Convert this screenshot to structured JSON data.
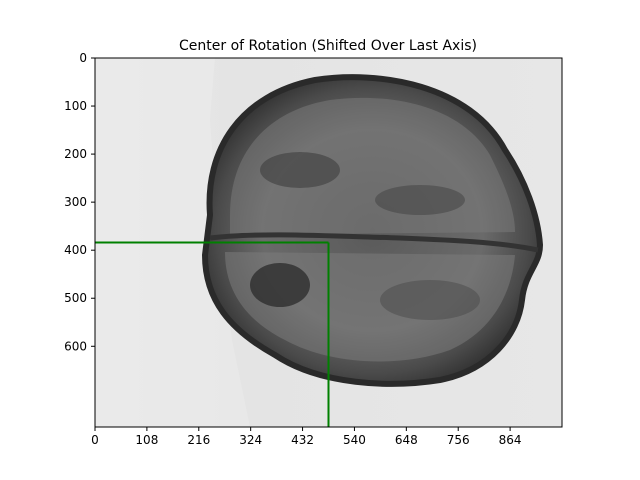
{
  "chart_data": {
    "type": "image",
    "title": "Center of Rotation (Shifted Over Last Axis)",
    "xlabel": "",
    "ylabel": "",
    "xlim": [
      0,
      972
    ],
    "ylim": [
      768,
      0
    ],
    "xticks": [
      0,
      108,
      216,
      324,
      432,
      540,
      648,
      756,
      864
    ],
    "yticks": [
      0,
      100,
      200,
      300,
      400,
      500,
      600
    ],
    "marker": {
      "color": "#008000",
      "x": 486,
      "y": 384
    },
    "image": {
      "subject": "x-ray projection of a walnut",
      "background_color": "#e6e6e6"
    }
  }
}
